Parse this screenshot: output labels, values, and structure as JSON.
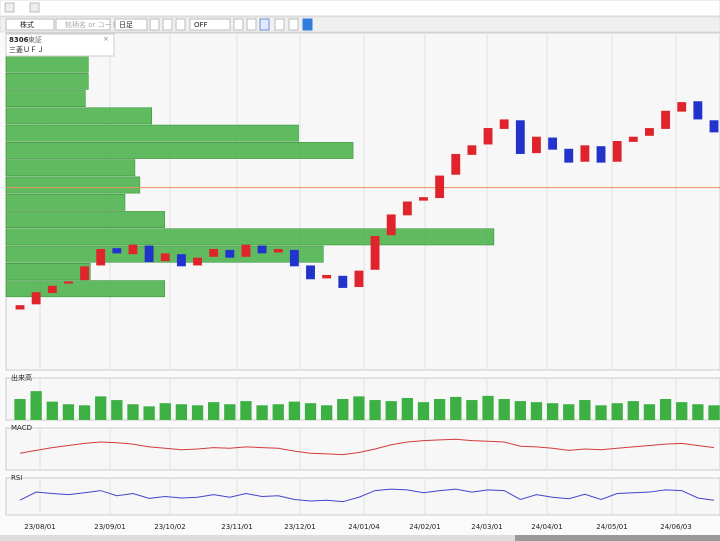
{
  "toolbar": {
    "market": "株式",
    "search": "銘柄名 or コード",
    "period": "日足",
    "mode": "OFF"
  },
  "symbol": {
    "code": "8306",
    "exchange": "東証",
    "name": "三菱ＵＦＪ"
  },
  "x_axis": {
    "labels": [
      "23/08/01",
      "23/09/01",
      "23/10/02",
      "23/11/01",
      "23/12/01",
      "24/01/04",
      "24/02/01",
      "24/03/01",
      "24/04/01",
      "24/05/01",
      "24/06/03"
    ]
  },
  "chart_data": [
    {
      "type": "candlestick",
      "ylim": [
        1020,
        1800
      ],
      "up_color": "#e0242c",
      "down_color": "#2233cc",
      "open": [
        1160,
        1172,
        1198,
        1220,
        1228,
        1262,
        1302,
        1288,
        1308,
        1272,
        1288,
        1262,
        1282,
        1298,
        1282,
        1308,
        1292,
        1298,
        1262,
        1232,
        1238,
        1212,
        1252,
        1332,
        1378,
        1412,
        1418,
        1472,
        1518,
        1542,
        1578,
        1598,
        1522,
        1558,
        1532,
        1502,
        1538,
        1502,
        1548,
        1562,
        1578,
        1618,
        1642,
        1598
      ],
      "close": [
        1170,
        1200,
        1215,
        1225,
        1260,
        1300,
        1290,
        1310,
        1270,
        1290,
        1260,
        1280,
        1300,
        1280,
        1310,
        1290,
        1300,
        1260,
        1230,
        1240,
        1210,
        1250,
        1330,
        1380,
        1410,
        1420,
        1470,
        1520,
        1540,
        1580,
        1600,
        1520,
        1560,
        1530,
        1500,
        1540,
        1500,
        1550,
        1560,
        1580,
        1620,
        1640,
        1600,
        1570
      ],
      "reference_line": 1442,
      "reference_color": "#e8925a",
      "profile": {
        "bins": [
          1187,
          1227,
          1267,
          1307,
          1347,
          1387,
          1427,
          1467,
          1507,
          1547,
          1587,
          1627,
          1667,
          1707,
          1747
        ],
        "values": [
          160,
          85,
          320,
          492,
          160,
          120,
          135,
          130,
          350,
          295,
          147,
          80,
          83,
          83
        ],
        "xlim": [
          0,
          720
        ],
        "color": "#3aab3a"
      }
    },
    {
      "type": "bar",
      "label": "出来高",
      "ylim": [
        0,
        80
      ],
      "color": "#3cb043",
      "values": [
        40,
        55,
        35,
        30,
        28,
        45,
        38,
        30,
        26,
        32,
        30,
        28,
        34,
        30,
        36,
        28,
        30,
        35,
        32,
        28,
        40,
        45,
        38,
        36,
        42,
        34,
        40,
        44,
        38,
        46,
        40,
        36,
        34,
        32,
        30,
        38,
        28,
        32,
        36,
        30,
        40,
        34,
        30,
        28
      ]
    },
    {
      "type": "line",
      "label": "MACD",
      "ylim": [
        -30,
        30
      ],
      "color": "#d23c3c",
      "values": [
        -6,
        -2,
        2,
        5,
        8,
        10,
        9,
        7,
        3,
        1,
        -1,
        0,
        2,
        1,
        3,
        2,
        1,
        -3,
        -6,
        -7,
        -8,
        -5,
        0,
        6,
        10,
        12,
        13,
        14,
        12,
        11,
        10,
        4,
        3,
        1,
        -2,
        0,
        -1,
        1,
        3,
        5,
        7,
        8,
        5,
        2
      ]
    },
    {
      "type": "line",
      "label": "RSI",
      "ylim": [
        0,
        100
      ],
      "color": "#4444cc",
      "values": [
        40,
        62,
        58,
        55,
        60,
        66,
        52,
        58,
        45,
        50,
        46,
        48,
        55,
        48,
        58,
        50,
        52,
        42,
        38,
        40,
        36,
        48,
        66,
        70,
        68,
        60,
        66,
        70,
        62,
        68,
        66,
        42,
        55,
        48,
        44,
        56,
        42,
        58,
        60,
        62,
        68,
        66,
        46,
        40
      ]
    }
  ]
}
